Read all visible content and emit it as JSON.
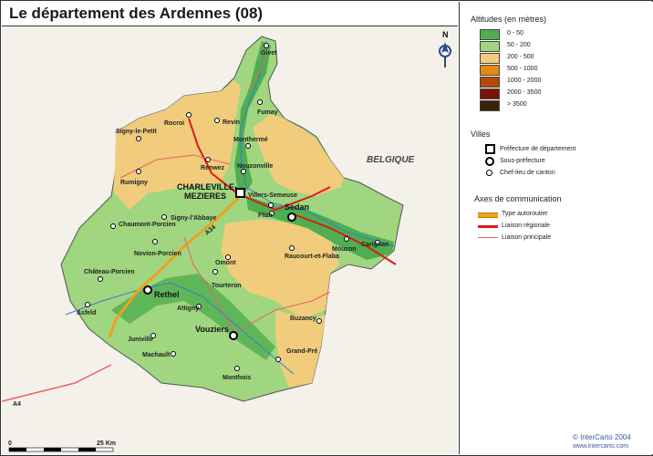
{
  "title": "Le département des Ardennes (08)",
  "map": {
    "country_label": "BELGIQUE",
    "road_labels": [
      "A34",
      "A4"
    ],
    "scale_label": "25 Km",
    "scale_zero": "0",
    "compass": "N",
    "cities": {
      "prefecture": {
        "name_line1": "CHARLEVILLE-",
        "name_line2": "MEZIERES"
      },
      "sous_prefectures": [
        "Sedan",
        "Rethel",
        "Vouziers"
      ],
      "cantons": [
        "Givet",
        "Fumay",
        "Revin",
        "Rocroi",
        "Signy-le-Petit",
        "Monthermé",
        "Renwez",
        "Nouzonville",
        "Rumigny",
        "Villers-Semeuse",
        "Flize",
        "Signy-l'Abbaye",
        "Chaumont-Porcien",
        "Novion-Porcien",
        "Omont",
        "Raucourt-et-Flaba",
        "Mouzon",
        "Carignan",
        "Château-Porcien",
        "Tourteron",
        "Asfeld",
        "Attigny",
        "Juniville",
        "Machault",
        "Buzancy",
        "Grand-Pré",
        "Monthois"
      ]
    }
  },
  "legend": {
    "altitude_title": "Altitudes (en mètres)",
    "altitude_classes": [
      {
        "label": "0 - 50",
        "color": "#4fae4f"
      },
      {
        "label": "50 - 200",
        "color": "#9fd67f"
      },
      {
        "label": "200 - 500",
        "color": "#f0cc7c"
      },
      {
        "label": "500 - 1000",
        "color": "#e38a12"
      },
      {
        "label": "1000 - 2000",
        "color": "#b34a08"
      },
      {
        "label": "2000 - 3500",
        "color": "#7a1208"
      },
      {
        "label": "> 3500",
        "color": "#3a220a"
      }
    ],
    "villes_title": "Villes",
    "villes": [
      {
        "label": "Préfecture de département"
      },
      {
        "label": "Sous-préfecture"
      },
      {
        "label": "Chef-lieu de canton"
      }
    ],
    "axes_title": "Axes de communication",
    "axes": [
      {
        "label": "Type autoroutier",
        "color": "#f0a020"
      },
      {
        "label": "Liaison régionale",
        "color": "#e01818"
      },
      {
        "label": "Liaison principale",
        "color": "#ee6060"
      }
    ]
  },
  "credit": {
    "brand": "© InterCarto 2004",
    "url": "www.intercarto.com"
  }
}
